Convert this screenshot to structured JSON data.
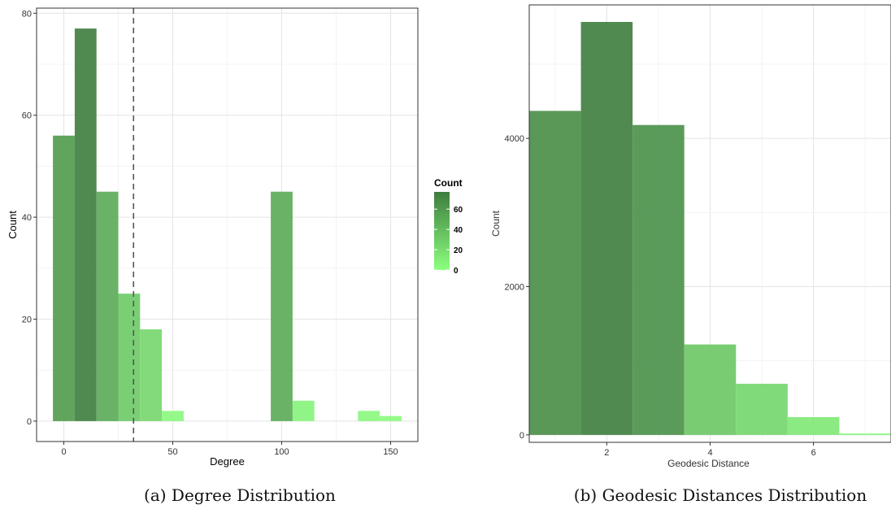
{
  "chart_data": [
    {
      "type": "bar",
      "xlabel": "Degree",
      "ylabel": "Count",
      "xlim": [
        -12.5,
        162.5
      ],
      "ylim": [
        -4,
        81
      ],
      "x_ticks": [
        0,
        50,
        100,
        150
      ],
      "x_tick_labels": [
        "0",
        "50",
        "100",
        "150"
      ],
      "y_ticks": [
        0,
        20,
        40,
        60,
        80
      ],
      "y_tick_labels": [
        "0",
        "20",
        "40",
        "60",
        "80"
      ],
      "bin_width": 10,
      "bars": [
        {
          "x": 0,
          "y": 56
        },
        {
          "x": 10,
          "y": 77
        },
        {
          "x": 20,
          "y": 45
        },
        {
          "x": 30,
          "y": 25
        },
        {
          "x": 40,
          "y": 18
        },
        {
          "x": 50,
          "y": 2
        },
        {
          "x": 100,
          "y": 45
        },
        {
          "x": 110,
          "y": 4
        },
        {
          "x": 140,
          "y": 2
        },
        {
          "x": 150,
          "y": 1
        }
      ],
      "vline_x": 32,
      "grid": true,
      "legend": {
        "title": "Count",
        "placement": "right",
        "range": [
          0,
          77
        ],
        "ticks": [
          0,
          20,
          40,
          60
        ],
        "tick_labels": [
          "0",
          "20",
          "40",
          "60"
        ]
      },
      "color_low": "#8cff80",
      "color_high": "#3e7d3e",
      "caption": "(a) Degree Distribution"
    },
    {
      "type": "bar",
      "xlabel": "Geodesic Distance",
      "ylabel": "Count",
      "xlim": [
        0.5,
        7.5
      ],
      "ylim": [
        -100,
        5800
      ],
      "x_ticks": [
        2,
        4,
        6
      ],
      "x_tick_labels": [
        "2",
        "4",
        "6"
      ],
      "y_ticks": [
        0,
        2000,
        4000
      ],
      "y_tick_labels": [
        "0",
        "2000",
        "4000"
      ],
      "bin_width": 1,
      "bars": [
        {
          "x": 1,
          "y": 4370
        },
        {
          "x": 2,
          "y": 5570
        },
        {
          "x": 3,
          "y": 4180
        },
        {
          "x": 4,
          "y": 1220
        },
        {
          "x": 5,
          "y": 690
        },
        {
          "x": 6,
          "y": 240
        },
        {
          "x": 7,
          "y": 20
        }
      ],
      "grid": true,
      "color_low": "#8cff80",
      "color_high": "#3e7d3e",
      "caption": "(b) Geodesic Distances Distribution"
    }
  ]
}
